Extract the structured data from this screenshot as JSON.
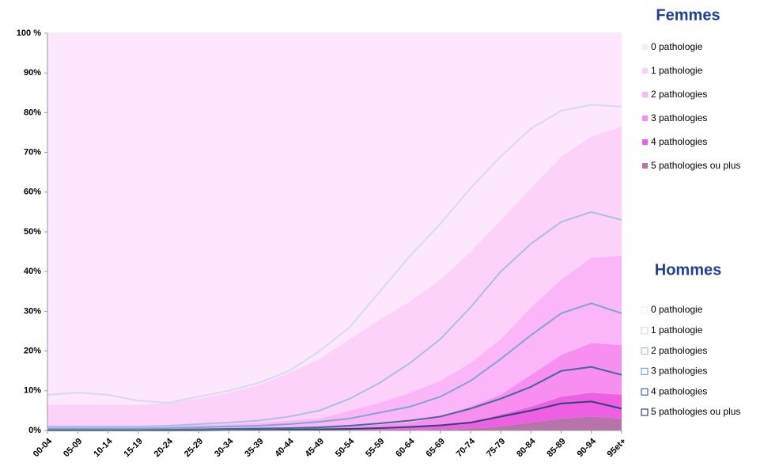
{
  "chart_data": {
    "type": "area",
    "categories": [
      "00-04",
      "05-09",
      "10-14",
      "15-19",
      "20-24",
      "25-29",
      "30-34",
      "35-39",
      "40-44",
      "45-49",
      "50-54",
      "55-59",
      "60-64",
      "65-69",
      "70-74",
      "75-79",
      "80-84",
      "85-89",
      "90-94",
      "95et+"
    ],
    "ylim": [
      0,
      100
    ],
    "yticks": [
      {
        "value": 0,
        "label": "0%"
      },
      {
        "value": 10,
        "label": "10%"
      },
      {
        "value": 20,
        "label": "20%"
      },
      {
        "value": 30,
        "label": "30%"
      },
      {
        "value": 40,
        "label": "40%"
      },
      {
        "value": 50,
        "label": "50%"
      },
      {
        "value": 60,
        "label": "60%"
      },
      {
        "value": 70,
        "label": "70%"
      },
      {
        "value": 80,
        "label": "80%"
      },
      {
        "value": 90,
        "label": "90%"
      },
      {
        "value": 100,
        "label": "100 %"
      }
    ],
    "groups": [
      {
        "title": "Femmes",
        "type": "area",
        "series": [
          {
            "name": "5 pathologies ou plus",
            "color": "#b674ab",
            "values": [
              0,
              0,
              0,
              0,
              0,
              0,
              0,
              0,
              0,
              0,
              0,
              0,
              0.1,
              0.2,
              0.5,
              1,
              2,
              3,
              3.5,
              3
            ]
          },
          {
            "name": "4 pathologies",
            "color": "#ee5fe3",
            "values": [
              0,
              0,
              0,
              0,
              0,
              0,
              0,
              0,
              0.1,
              0.2,
              0.3,
              0.5,
              0.7,
              1,
              1.5,
              3,
              4,
              5.5,
              6,
              6
            ]
          },
          {
            "name": "3 pathologies",
            "color": "#f78ef0",
            "values": [
              0.2,
              0.2,
              0.2,
              0.2,
              0.3,
              0.3,
              0.4,
              0.5,
              0.5,
              0.6,
              0.7,
              1,
              1.2,
              2.3,
              4,
              5,
              8,
              10.5,
              12.5,
              12.5
            ]
          },
          {
            "name": "2 pathologies",
            "color": "#fab6f6",
            "values": [
              0.8,
              0.8,
              0.8,
              0.8,
              0.9,
              1.1,
              1.2,
              1.5,
              1.9,
              2.2,
              4,
              5.5,
              7.5,
              9,
              11,
              14,
              17,
              19,
              21.5,
              22.5
            ]
          },
          {
            "name": "1 pathologie",
            "color": "#fcd2fa",
            "values": [
              5.5,
              5.5,
              5.5,
              5.5,
              5.8,
              6.6,
              7.9,
              9.5,
              12,
              15,
              18,
              21,
              23,
              25.5,
              28,
              30,
              30,
              31,
              30.5,
              32.5
            ]
          },
          {
            "name": "0 pathologie",
            "color": "#fde7fc",
            "values": [
              93.5,
              93.5,
              93.5,
              93.5,
              93,
              92,
              90.5,
              88.5,
              85.5,
              82,
              77,
              72,
              67.5,
              62,
              55,
              47,
              39,
              31,
              26,
              23.5
            ]
          }
        ]
      },
      {
        "title": "Hommes",
        "type": "line",
        "series": [
          {
            "name": "5 pathologies ou plus",
            "color": "#2b4770",
            "values": [
              0,
              0,
              0,
              0,
              0,
              0,
              0.1,
              0.1,
              0.2,
              0.3,
              0.4,
              0.6,
              0.9,
              1.3,
              2,
              3.5,
              5,
              6.8,
              7.3,
              5.5
            ]
          },
          {
            "name": "4 pathologies",
            "color": "#3e6a9a",
            "values": [
              0.2,
              0.2,
              0.2,
              0.2,
              0.2,
              0.3,
              0.3,
              0.4,
              0.4,
              0.5,
              0.8,
              1.2,
              1.6,
              2.2,
              3.5,
              4.5,
              6,
              8.2,
              8.7,
              8.5
            ]
          },
          {
            "name": "3 pathologies",
            "color": "#7ea6cf",
            "values": [
              0.3,
              0.3,
              0.3,
              0.3,
              0.4,
              0.5,
              0.6,
              0.7,
              1,
              1.4,
              1.8,
              2.7,
              3.5,
              5,
              7,
              10,
              13,
              14.5,
              16,
              15.5
            ]
          },
          {
            "name": "2 pathologies",
            "color": "#a8c0e0",
            "values": [
              0.5,
              0.5,
              0.5,
              0.5,
              0.6,
              0.8,
              1,
              1.3,
              1.9,
              2.8,
              5,
              7.5,
              11,
              14.5,
              18.5,
              22,
              23,
              23,
              23,
              23.5
            ]
          },
          {
            "name": "1 pathologie",
            "color": "#d3dcee",
            "values": [
              8,
              8.5,
              8,
              6.5,
              5.8,
              6.9,
              8,
              9.5,
              11.5,
              15,
              18,
              23,
              27,
              29,
              30,
              29,
              29,
              28,
              27,
              28.5
            ]
          },
          {
            "name": "0 pathologie",
            "color": "#eeeef6",
            "values": [
              91,
              90.5,
              91,
              92.5,
              93,
              91.5,
              90,
              88,
              85,
              80,
              74,
              65,
              56,
              48,
              39,
              31,
              24,
              19.5,
              18,
              18.5
            ]
          }
        ]
      }
    ]
  }
}
